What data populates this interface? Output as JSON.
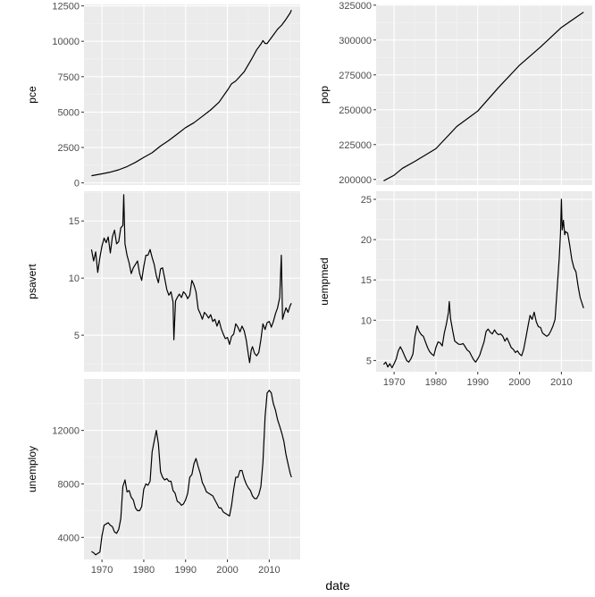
{
  "chart_data": {
    "type": "line",
    "xlabel": "date",
    "xlim": [
      1965.7,
      2017.4
    ],
    "x_ticks": [
      1970,
      1980,
      1990,
      2000,
      2010
    ],
    "x_tick_labels": [
      "1970",
      "1980",
      "1990",
      "2000",
      "2010"
    ],
    "grid": true,
    "layout": "facet-wrap, 2 columns, free y scales",
    "colors": {
      "panel": "#ebebeb",
      "grid": "#ffffff",
      "line": "#000000",
      "tick_text": "#4d4d4d"
    },
    "panels": [
      {
        "ylabel": "pce",
        "ylim": [
          -150,
          12600
        ],
        "y_ticks": [
          0,
          2500,
          5000,
          7500,
          10000,
          12500
        ],
        "y_tick_labels": [
          "0",
          "2500",
          "5000",
          "7500",
          "10000",
          "12500"
        ],
        "x": [
          1967.5,
          1970,
          1972,
          1974,
          1976,
          1978,
          1980,
          1982,
          1984,
          1986,
          1988,
          1990,
          1992,
          1994,
          1996,
          1998,
          2000,
          2001,
          2002,
          2004,
          2006,
          2007,
          2008,
          2008.5,
          2009,
          2009.5,
          2010,
          2011,
          2012,
          2013,
          2014,
          2015,
          2015.3
        ],
        "y": [
          507,
          640,
          760,
          920,
          1150,
          1450,
          1800,
          2130,
          2600,
          3000,
          3450,
          3900,
          4250,
          4700,
          5150,
          5700,
          6550,
          7000,
          7200,
          7850,
          8850,
          9400,
          9800,
          10050,
          9850,
          9850,
          10050,
          10450,
          10850,
          11150,
          11550,
          12000,
          12200
        ]
      },
      {
        "ylabel": "pop",
        "ylim": [
          196000,
          325500
        ],
        "y_ticks": [
          200000,
          225000,
          250000,
          275000,
          300000,
          325000
        ],
        "y_tick_labels": [
          "200000",
          "225000",
          "250000",
          "275000",
          "300000",
          "325000"
        ],
        "x": [
          1967.5,
          1970,
          1972,
          1975,
          1980,
          1985,
          1990,
          1995,
          2000,
          2005,
          2010,
          2015.3
        ],
        "y": [
          199000,
          203000,
          208000,
          213000,
          222000,
          238000,
          249000,
          266000,
          282000,
          295000,
          309000,
          320000
        ]
      },
      {
        "ylabel": "psavert",
        "ylim": [
          1.8,
          17.6
        ],
        "y_ticks": [
          5,
          10,
          15
        ],
        "y_tick_labels": [
          "5",
          "10",
          "15"
        ],
        "x": [
          1967.5,
          1968,
          1968.5,
          1969,
          1969.5,
          1970,
          1970.5,
          1971,
          1971.5,
          1972,
          1972.5,
          1973,
          1973.5,
          1974,
          1974.5,
          1975,
          1975.2,
          1975.5,
          1976,
          1976.5,
          1977,
          1977.5,
          1978,
          1978.5,
          1979,
          1979.5,
          1980,
          1980.5,
          1981,
          1981.5,
          1982,
          1982.5,
          1983,
          1983.5,
          1984,
          1984.5,
          1985,
          1985.5,
          1986,
          1986.5,
          1987,
          1987.2,
          1987.6,
          1988,
          1988.5,
          1989,
          1989.5,
          1990,
          1990.5,
          1991,
          1991.5,
          1992,
          1992.5,
          1993,
          1993.5,
          1994,
          1994.5,
          1995,
          1995.5,
          1996,
          1996.5,
          1997,
          1997.5,
          1998,
          1998.5,
          1999,
          1999.5,
          2000,
          2000.5,
          2001,
          2001.5,
          2002,
          2002.5,
          2003,
          2003.5,
          2004,
          2004.5,
          2005,
          2005.3,
          2005.7,
          2006,
          2006.5,
          2007,
          2007.5,
          2008,
          2008.5,
          2009,
          2009.5,
          2010,
          2010.5,
          2011,
          2011.5,
          2012,
          2012.5,
          2012.9,
          2013.2,
          2013.5,
          2014,
          2014.5,
          2015,
          2015.3
        ],
        "y": [
          12.5,
          11.5,
          12.3,
          10.5,
          11.8,
          12.8,
          13.5,
          13.1,
          13.6,
          12.2,
          13.6,
          14.2,
          13.0,
          13.2,
          14.4,
          14.6,
          17.3,
          13.0,
          12.0,
          11.3,
          10.4,
          10.9,
          11.2,
          11.5,
          10.4,
          9.8,
          11.0,
          12.0,
          12.0,
          12.5,
          11.8,
          11.2,
          10.2,
          9.6,
          10.8,
          10.9,
          10.0,
          9.0,
          8.5,
          8.8,
          7.9,
          4.6,
          8.0,
          8.3,
          8.6,
          8.3,
          8.8,
          8.6,
          8.2,
          8.5,
          9.8,
          9.4,
          8.8,
          7.3,
          6.9,
          6.4,
          7.0,
          6.8,
          6.5,
          6.8,
          6.2,
          6.4,
          5.8,
          6.3,
          5.6,
          5.1,
          4.7,
          4.8,
          4.2,
          4.9,
          5.1,
          6.0,
          5.7,
          5.3,
          5.8,
          5.4,
          4.6,
          3.3,
          2.6,
          3.7,
          4.0,
          3.4,
          3.2,
          3.5,
          4.6,
          6.0,
          5.5,
          6.1,
          6.2,
          5.7,
          6.2,
          6.9,
          7.4,
          8.3,
          12.0,
          6.4,
          6.8,
          7.4,
          7.0,
          7.6,
          7.8
        ]
      },
      {
        "ylabel": "uempmed",
        "ylim": [
          3.6,
          26.0
        ],
        "y_ticks": [
          5,
          10,
          15,
          20,
          25
        ],
        "y_tick_labels": [
          "5",
          "10",
          "15",
          "20",
          "25"
        ],
        "x": [
          1967.5,
          1968,
          1968.5,
          1969,
          1969.5,
          1970,
          1970.5,
          1971,
          1971.5,
          1972,
          1972.5,
          1973,
          1973.5,
          1974,
          1974.5,
          1975,
          1975.5,
          1976,
          1976.5,
          1977,
          1977.5,
          1978,
          1978.5,
          1979,
          1979.5,
          1980,
          1980.5,
          1981,
          1981.5,
          1982,
          1982.5,
          1983,
          1983.2,
          1983.5,
          1984,
          1984.5,
          1985,
          1985.5,
          1986,
          1986.5,
          1987,
          1987.5,
          1988,
          1988.5,
          1989,
          1989.5,
          1990,
          1990.5,
          1991,
          1991.5,
          1992,
          1992.5,
          1993,
          1993.5,
          1994,
          1994.5,
          1995,
          1995.5,
          1996,
          1996.5,
          1997,
          1997.5,
          1998,
          1998.5,
          1999,
          1999.5,
          2000,
          2000.5,
          2001,
          2001.5,
          2002,
          2002.5,
          2003,
          2003.5,
          2004,
          2004.5,
          2005,
          2005.5,
          2006,
          2006.5,
          2007,
          2007.5,
          2008,
          2008.5,
          2009,
          2009.5,
          2009.8,
          2010,
          2010.2,
          2010.5,
          2010.8,
          2011,
          2011.5,
          2012,
          2012.5,
          2013,
          2013.5,
          2014,
          2014.5,
          2015,
          2015.3
        ],
        "y": [
          4.5,
          4.8,
          4.2,
          4.6,
          4.1,
          4.6,
          5.2,
          6.2,
          6.7,
          6.2,
          5.6,
          5.0,
          4.8,
          5.2,
          5.8,
          8.0,
          9.3,
          8.6,
          8.2,
          8.0,
          7.3,
          6.6,
          6.1,
          5.8,
          5.6,
          6.6,
          7.3,
          7.2,
          6.8,
          8.4,
          9.5,
          11.0,
          12.3,
          10.2,
          8.7,
          7.4,
          7.2,
          7.0,
          7.0,
          7.1,
          6.7,
          6.3,
          6.1,
          5.6,
          5.1,
          4.8,
          5.2,
          5.7,
          6.5,
          7.3,
          8.6,
          8.9,
          8.5,
          8.3,
          8.8,
          8.4,
          8.2,
          8.3,
          8.0,
          7.4,
          7.8,
          7.2,
          6.6,
          6.4,
          6.0,
          6.2,
          5.8,
          5.6,
          6.4,
          7.8,
          9.2,
          10.6,
          10.1,
          11.0,
          9.8,
          9.2,
          9.1,
          8.4,
          8.2,
          8.0,
          8.2,
          8.7,
          9.3,
          10.1,
          14.0,
          17.8,
          20.8,
          25.0,
          21.2,
          22.4,
          20.6,
          21.0,
          20.8,
          19.3,
          17.5,
          16.5,
          16.0,
          14.2,
          12.8,
          12.0,
          11.5
        ]
      },
      {
        "ylabel": "unemploy",
        "ylim": [
          2350,
          15850
        ],
        "y_ticks": [
          4000,
          8000,
          12000
        ],
        "y_tick_labels": [
          "4000",
          "8000",
          "12000"
        ],
        "x": [
          1967.5,
          1968,
          1968.5,
          1969,
          1969.5,
          1970,
          1970.5,
          1971,
          1971.5,
          1972,
          1972.5,
          1973,
          1973.5,
          1974,
          1974.5,
          1975,
          1975.5,
          1976,
          1976.5,
          1977,
          1977.5,
          1978,
          1978.5,
          1979,
          1979.5,
          1980,
          1980.5,
          1981,
          1981.5,
          1982,
          1982.5,
          1983,
          1983.5,
          1984,
          1984.5,
          1985,
          1985.5,
          1986,
          1986.5,
          1987,
          1987.5,
          1988,
          1988.5,
          1989,
          1989.5,
          1990,
          1990.5,
          1991,
          1991.5,
          1992,
          1992.5,
          1993,
          1993.5,
          1994,
          1994.5,
          1995,
          1995.5,
          1996,
          1996.5,
          1997,
          1997.5,
          1998,
          1998.5,
          1999,
          1999.5,
          2000,
          2000.5,
          2001,
          2001.5,
          2002,
          2002.5,
          2003,
          2003.5,
          2004,
          2004.5,
          2005,
          2005.5,
          2006,
          2006.5,
          2007,
          2007.5,
          2008,
          2008.5,
          2009,
          2009.5,
          2010,
          2010.5,
          2011,
          2011.5,
          2012,
          2012.5,
          2013,
          2013.5,
          2014,
          2014.5,
          2015,
          2015.3
        ],
        "y": [
          2944,
          2850,
          2700,
          2800,
          2900,
          4100,
          4900,
          5000,
          5100,
          4900,
          4800,
          4400,
          4300,
          4600,
          5400,
          7800,
          8300,
          7400,
          7500,
          7000,
          6800,
          6200,
          6000,
          6000,
          6300,
          7600,
          8000,
          7900,
          8200,
          10400,
          11200,
          12000,
          11000,
          8900,
          8500,
          8300,
          8400,
          8200,
          8200,
          7500,
          7300,
          6700,
          6600,
          6400,
          6500,
          6800,
          7300,
          8500,
          8700,
          9500,
          9900,
          9300,
          8800,
          8100,
          7800,
          7400,
          7300,
          7200,
          7100,
          6800,
          6500,
          6200,
          6200,
          5900,
          5800,
          5700,
          5600,
          6400,
          7600,
          8500,
          8500,
          9000,
          9000,
          8400,
          8000,
          7700,
          7500,
          7100,
          6900,
          6900,
          7200,
          7800,
          9600,
          13000,
          14800,
          15000,
          14800,
          14000,
          13500,
          12800,
          12300,
          11800,
          11200,
          10200,
          9500,
          8800,
          8500
        ]
      }
    ]
  }
}
